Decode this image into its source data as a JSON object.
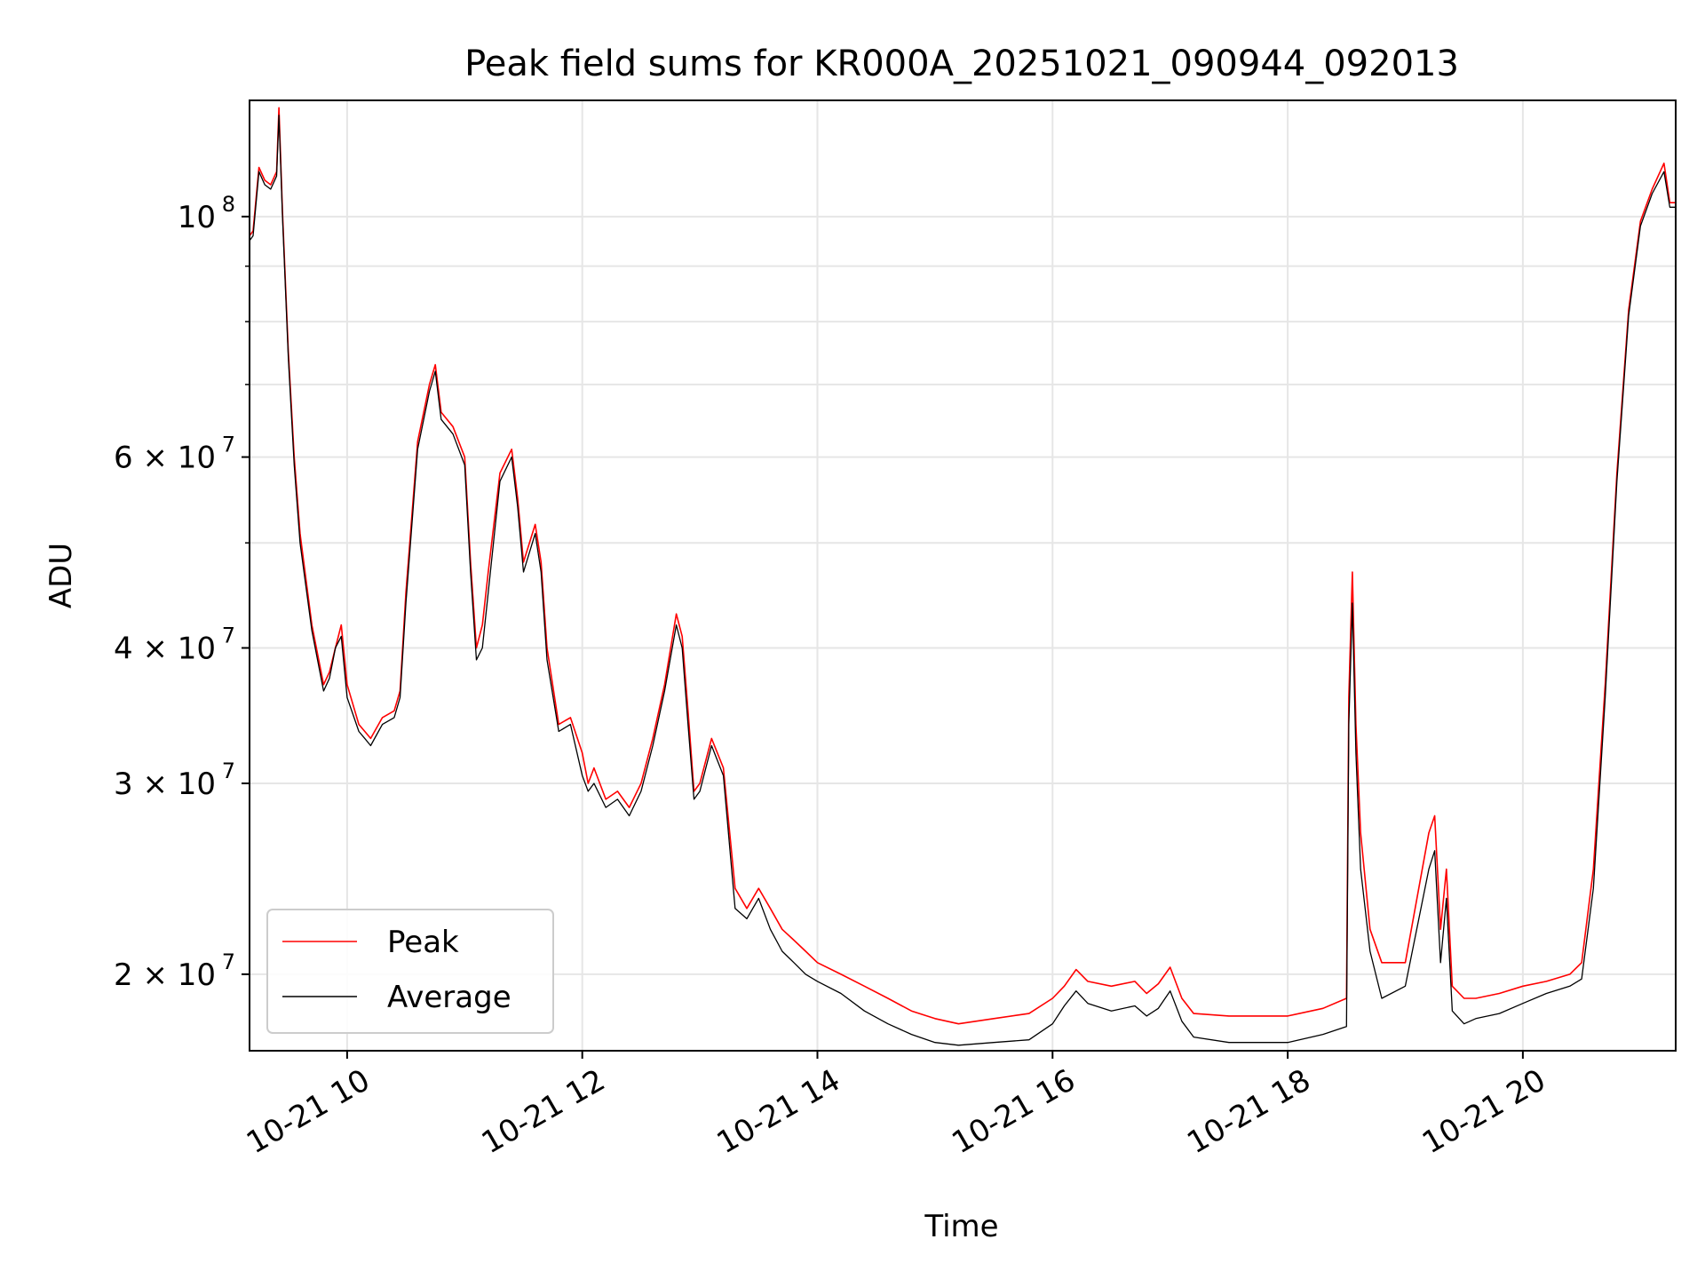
{
  "chart_data": {
    "type": "line",
    "title": "Peak field sums for KR000A_20251021_090944_092013",
    "xlabel": "Time",
    "ylabel": "ADU",
    "yscale": "log",
    "xlim": [
      9.17,
      21.3
    ],
    "ylim": [
      17000000,
      128000000
    ],
    "grid": true,
    "legend_position": "lower-left",
    "x_ticks": [
      {
        "value": 10,
        "label": "10-21 10"
      },
      {
        "value": 12,
        "label": "10-21 12"
      },
      {
        "value": 14,
        "label": "10-21 14"
      },
      {
        "value": 16,
        "label": "10-21 16"
      },
      {
        "value": 18,
        "label": "10-21 18"
      },
      {
        "value": 20,
        "label": "10-21 20"
      }
    ],
    "y_ticks": [
      {
        "value": 20000000,
        "mant": "2 × 10",
        "exp": "7"
      },
      {
        "value": 30000000,
        "mant": "3 × 10",
        "exp": "7"
      },
      {
        "value": 40000000,
        "mant": "4 × 10",
        "exp": "7"
      },
      {
        "value": 60000000,
        "mant": "6 × 10",
        "exp": "7"
      },
      {
        "value": 100000000,
        "mant": "10",
        "exp": "8"
      }
    ],
    "y_minor_ticks": [
      50000000,
      70000000,
      80000000,
      90000000
    ],
    "series": [
      {
        "name": "Peak",
        "color": "#ff0000",
        "x": [
          9.17,
          9.2,
          9.25,
          9.3,
          9.35,
          9.4,
          9.42,
          9.45,
          9.5,
          9.55,
          9.6,
          9.7,
          9.8,
          9.85,
          9.9,
          9.95,
          10.0,
          10.1,
          10.15,
          10.2,
          10.3,
          10.4,
          10.45,
          10.5,
          10.6,
          10.7,
          10.75,
          10.8,
          10.9,
          11.0,
          11.05,
          11.1,
          11.15,
          11.2,
          11.3,
          11.4,
          11.45,
          11.5,
          11.6,
          11.65,
          11.7,
          11.8,
          11.9,
          12.0,
          12.05,
          12.1,
          12.2,
          12.3,
          12.4,
          12.5,
          12.6,
          12.7,
          12.8,
          12.85,
          12.9,
          12.95,
          13.0,
          13.1,
          13.2,
          13.3,
          13.4,
          13.5,
          13.6,
          13.7,
          13.8,
          13.9,
          14.0,
          14.2,
          14.4,
          14.6,
          14.8,
          15.0,
          15.2,
          15.5,
          15.8,
          16.0,
          16.1,
          16.2,
          16.3,
          16.5,
          16.7,
          16.8,
          16.9,
          17.0,
          17.1,
          17.2,
          17.5,
          17.8,
          18.0,
          18.3,
          18.5,
          18.52,
          18.55,
          18.58,
          18.62,
          18.7,
          18.8,
          19.0,
          19.2,
          19.25,
          19.3,
          19.35,
          19.4,
          19.5,
          19.6,
          19.8,
          20.0,
          20.2,
          20.4,
          20.5,
          20.6,
          20.7,
          20.8,
          20.9,
          21.0,
          21.1,
          21.2,
          21.25,
          21.3
        ],
        "y": [
          96000000,
          97000000,
          111000000,
          108000000,
          107000000,
          110000000,
          126000000,
          101000000,
          75000000,
          60000000,
          51000000,
          42000000,
          37000000,
          38000000,
          40000000,
          42000000,
          37000000,
          34000000,
          33500000,
          33000000,
          34500000,
          35000000,
          36500000,
          45000000,
          62000000,
          70000000,
          73000000,
          66000000,
          64000000,
          60000000,
          48000000,
          40000000,
          42000000,
          47000000,
          58000000,
          61000000,
          55000000,
          48000000,
          52000000,
          48000000,
          40000000,
          34000000,
          34500000,
          32000000,
          30000000,
          31000000,
          29000000,
          29500000,
          28500000,
          30000000,
          33000000,
          37000000,
          43000000,
          41000000,
          35000000,
          29500000,
          30000000,
          33000000,
          31000000,
          24000000,
          23000000,
          24000000,
          23000000,
          22000000,
          21500000,
          21000000,
          20500000,
          20000000,
          19500000,
          19000000,
          18500000,
          18200000,
          18000000,
          18200000,
          18400000,
          19000000,
          19500000,
          20200000,
          19700000,
          19500000,
          19700000,
          19200000,
          19600000,
          20300000,
          19000000,
          18400000,
          18300000,
          18300000,
          18300000,
          18600000,
          19000000,
          36000000,
          47000000,
          34000000,
          27000000,
          22000000,
          20500000,
          20500000,
          27000000,
          28000000,
          22000000,
          25000000,
          19500000,
          19000000,
          19000000,
          19200000,
          19500000,
          19700000,
          20000000,
          20500000,
          25000000,
          37000000,
          58000000,
          82000000,
          99000000,
          106000000,
          112000000,
          103000000,
          103000000
        ]
      },
      {
        "name": "Average",
        "color": "#000000",
        "x": [
          9.17,
          9.2,
          9.25,
          9.3,
          9.35,
          9.4,
          9.42,
          9.45,
          9.5,
          9.55,
          9.6,
          9.7,
          9.8,
          9.85,
          9.9,
          9.95,
          10.0,
          10.1,
          10.15,
          10.2,
          10.3,
          10.4,
          10.45,
          10.5,
          10.6,
          10.7,
          10.75,
          10.8,
          10.9,
          11.0,
          11.05,
          11.1,
          11.15,
          11.2,
          11.3,
          11.4,
          11.45,
          11.5,
          11.6,
          11.65,
          11.7,
          11.8,
          11.9,
          12.0,
          12.05,
          12.1,
          12.2,
          12.3,
          12.4,
          12.5,
          12.6,
          12.7,
          12.8,
          12.85,
          12.9,
          12.95,
          13.0,
          13.1,
          13.2,
          13.3,
          13.4,
          13.5,
          13.6,
          13.7,
          13.8,
          13.9,
          14.0,
          14.2,
          14.4,
          14.6,
          14.8,
          15.0,
          15.2,
          15.5,
          15.8,
          16.0,
          16.1,
          16.2,
          16.3,
          16.5,
          16.7,
          16.8,
          16.9,
          17.0,
          17.1,
          17.2,
          17.5,
          17.8,
          18.0,
          18.3,
          18.5,
          18.52,
          18.55,
          18.58,
          18.62,
          18.7,
          18.8,
          19.0,
          19.2,
          19.25,
          19.3,
          19.35,
          19.4,
          19.5,
          19.6,
          19.8,
          20.0,
          20.2,
          20.4,
          20.5,
          20.6,
          20.7,
          20.8,
          20.9,
          21.0,
          21.1,
          21.2,
          21.25,
          21.3
        ],
        "y": [
          95000000,
          96000000,
          110000000,
          107000000,
          106000000,
          109000000,
          124000000,
          100000000,
          74000000,
          59000000,
          50000000,
          41500000,
          36500000,
          37500000,
          40000000,
          41000000,
          36000000,
          33500000,
          33000000,
          32500000,
          34000000,
          34500000,
          36000000,
          44000000,
          61000000,
          69000000,
          72000000,
          65000000,
          63000000,
          59000000,
          47000000,
          39000000,
          40000000,
          45000000,
          57000000,
          60000000,
          54000000,
          47000000,
          51000000,
          47000000,
          39000000,
          33500000,
          34000000,
          30500000,
          29500000,
          30000000,
          28500000,
          29000000,
          28000000,
          29500000,
          32500000,
          36500000,
          42000000,
          40000000,
          34000000,
          29000000,
          29500000,
          32500000,
          30500000,
          23000000,
          22500000,
          23500000,
          22000000,
          21000000,
          20500000,
          20000000,
          19700000,
          19200000,
          18500000,
          18000000,
          17600000,
          17300000,
          17200000,
          17300000,
          17400000,
          18000000,
          18700000,
          19300000,
          18800000,
          18500000,
          18700000,
          18300000,
          18600000,
          19300000,
          18100000,
          17500000,
          17300000,
          17300000,
          17300000,
          17600000,
          17900000,
          34000000,
          44000000,
          32000000,
          25000000,
          21000000,
          19000000,
          19500000,
          25000000,
          26000000,
          20500000,
          23500000,
          18500000,
          18000000,
          18200000,
          18400000,
          18800000,
          19200000,
          19500000,
          19800000,
          24000000,
          36000000,
          57000000,
          81000000,
          98000000,
          105000000,
          110000000,
          102000000,
          102000000
        ]
      }
    ]
  }
}
